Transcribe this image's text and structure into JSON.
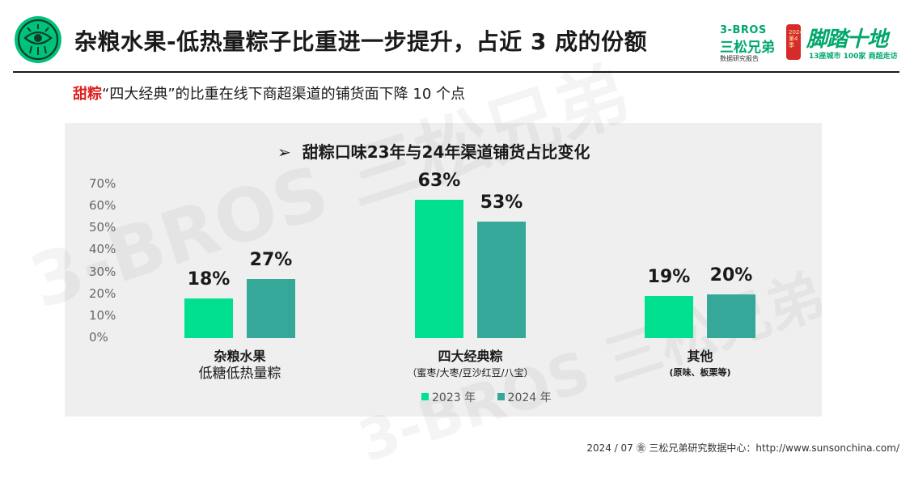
{
  "header": {
    "title": "杂粮水果-低热量粽子比重进一步提升，占近 3 成的份额",
    "brand_top": "3-BROS",
    "brand_name": "三松兄弟",
    "brand_sub": "数据研究报告",
    "lantern_text": "2024第4季",
    "slogan_main": "脚踏十地",
    "slogan_sub": "13座城市 100家 商超走访"
  },
  "subtitle": {
    "highlight": "甜粽",
    "text": "“四大经典”的比重在线下商超渠道的铺货面下降 10 个点"
  },
  "chart_data": {
    "type": "bar",
    "title": "甜粽口味23年与24年渠道铺货占比变化",
    "title_marker": "➢",
    "categories": [
      "杂粮水果",
      "四大经典粽",
      "其他"
    ],
    "category_subs": [
      "低糖低热量粽",
      "（蜜枣/大枣/豆沙红豆/八宝）",
      "(原味、板栗等)"
    ],
    "series": [
      {
        "name": "2023 年",
        "color": "#00e08f",
        "values": [
          18,
          63,
          19
        ]
      },
      {
        "name": "2024 年",
        "color": "#36a89a",
        "values": [
          27,
          53,
          20
        ]
      }
    ],
    "value_labels": [
      [
        "18%",
        "63%",
        "19%"
      ],
      [
        "27%",
        "53%",
        "20%"
      ]
    ],
    "y_ticks": [
      "70%",
      "60%",
      "50%",
      "40%",
      "30%",
      "20%",
      "10%",
      "0%"
    ],
    "ylim": [
      0,
      70
    ],
    "legend_position": "bottom-center"
  },
  "watermark": "3-BROS 三松兄弟",
  "footer": {
    "text": "2024 / 07  ㊎  三松兄弟研究数据中心：http://www.sunsonchina.com/"
  }
}
